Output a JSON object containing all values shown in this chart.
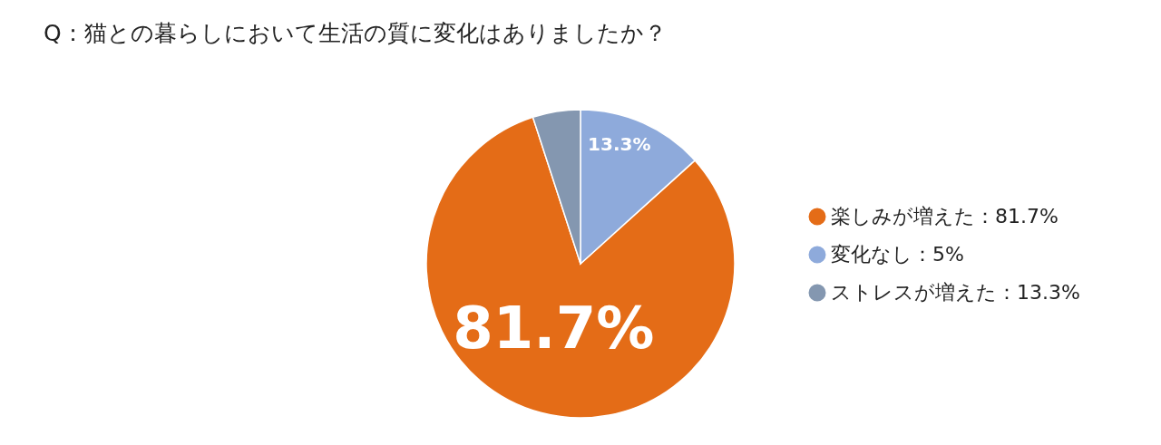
{
  "chart_data": {
    "type": "pie",
    "title": "Q：猫との暮らしにおいて生活の質に変化はありましたか？",
    "categories": [
      "楽しみが増えた：81.7%",
      "変化なし：5%",
      "ストレスが増えた：13.3%"
    ],
    "values": [
      81.7,
      13.3,
      5
    ],
    "colors": [
      "#e46c17",
      "#8eaadb",
      "#8497b0"
    ],
    "value_labels": [
      "81.7%",
      "13.3%",
      null
    ],
    "legend": "right"
  }
}
